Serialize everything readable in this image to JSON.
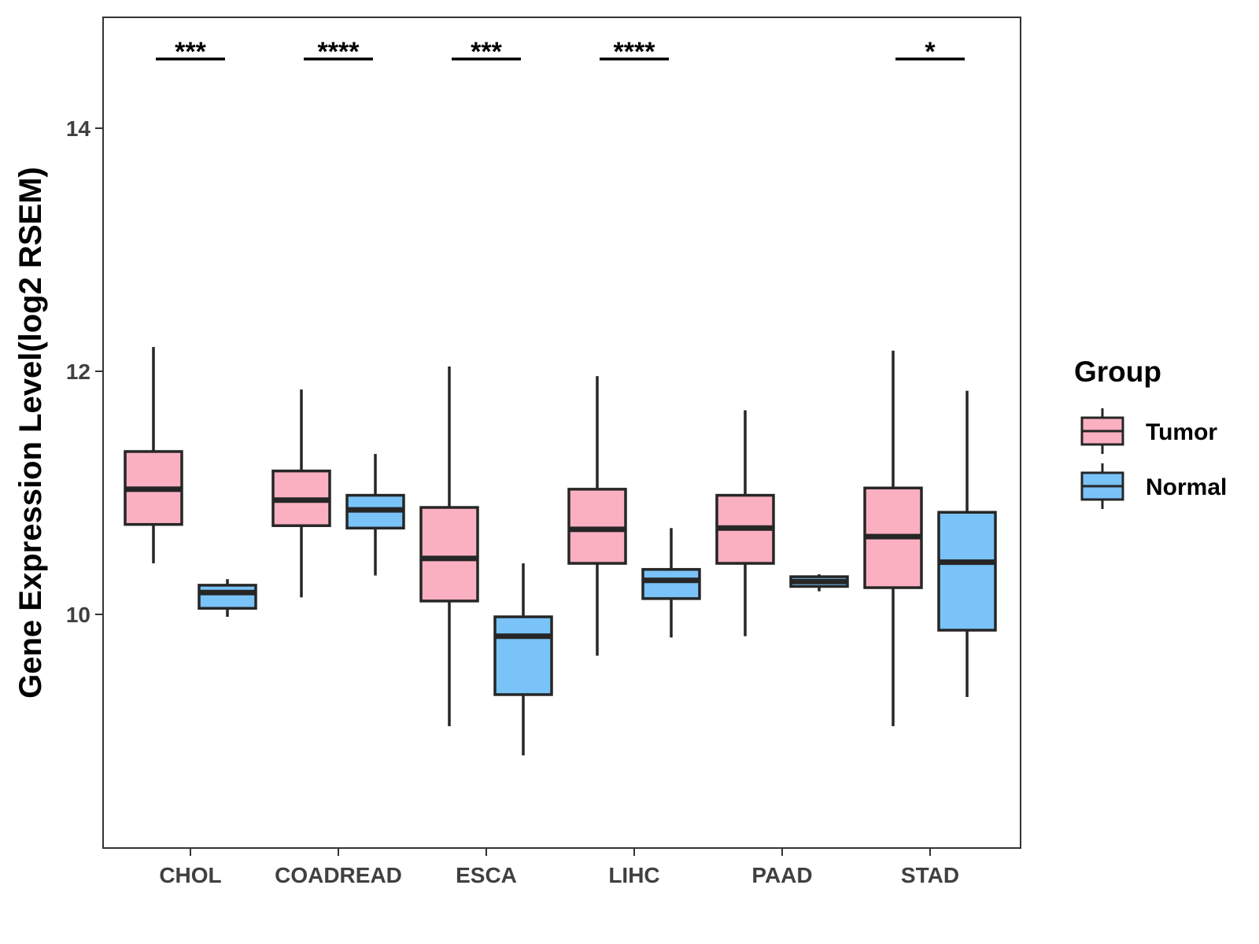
{
  "chart_data": {
    "type": "boxplot",
    "ylabel": "Gene Expression Level(log2 RSEM)",
    "xlabel": "",
    "ylim": [
      8.15,
      14.9
    ],
    "yticks": [
      10,
      12,
      14
    ],
    "categories": [
      "CHOL",
      "COADREAD",
      "ESCA",
      "LIHC",
      "PAAD",
      "STAD"
    ],
    "legend": {
      "title": "Group",
      "position": "right",
      "entries": [
        {
          "name": "Tumor",
          "color": "#fbb0c2"
        },
        {
          "name": "Normal",
          "color": "#79c3f8"
        }
      ]
    },
    "series": [
      {
        "name": "Tumor",
        "color": "#fbb0c2",
        "boxes": [
          {
            "min": 10.42,
            "q1": 10.74,
            "median": 11.03,
            "q3": 11.34,
            "max": 12.2
          },
          {
            "min": 10.14,
            "q1": 10.73,
            "median": 10.94,
            "q3": 11.18,
            "max": 11.85
          },
          {
            "min": 9.08,
            "q1": 10.11,
            "median": 10.46,
            "q3": 10.88,
            "max": 12.04
          },
          {
            "min": 9.66,
            "q1": 10.42,
            "median": 10.7,
            "q3": 11.03,
            "max": 11.96
          },
          {
            "min": 9.82,
            "q1": 10.42,
            "median": 10.71,
            "q3": 10.98,
            "max": 11.68
          },
          {
            "min": 9.08,
            "q1": 10.22,
            "median": 10.64,
            "q3": 11.04,
            "max": 12.17
          }
        ]
      },
      {
        "name": "Normal",
        "color": "#79c3f8",
        "boxes": [
          {
            "min": 9.98,
            "q1": 10.05,
            "median": 10.18,
            "q3": 10.24,
            "max": 10.29
          },
          {
            "min": 10.32,
            "q1": 10.71,
            "median": 10.86,
            "q3": 10.98,
            "max": 11.32
          },
          {
            "min": 8.84,
            "q1": 9.34,
            "median": 9.82,
            "q3": 9.98,
            "max": 10.42
          },
          {
            "min": 9.81,
            "q1": 10.13,
            "median": 10.28,
            "q3": 10.37,
            "max": 10.71
          },
          {
            "min": 10.19,
            "q1": 10.23,
            "median": 10.27,
            "q3": 10.31,
            "max": 10.33
          },
          {
            "min": 9.32,
            "q1": 9.87,
            "median": 10.43,
            "q3": 10.84,
            "max": 11.84
          }
        ]
      }
    ],
    "annotations": [
      {
        "category": "CHOL",
        "label": "***"
      },
      {
        "category": "COADREAD",
        "label": "****"
      },
      {
        "category": "ESCA",
        "label": "***"
      },
      {
        "category": "LIHC",
        "label": "****"
      },
      {
        "category": "PAAD",
        "label": ""
      },
      {
        "category": "STAD",
        "label": "*"
      }
    ]
  }
}
